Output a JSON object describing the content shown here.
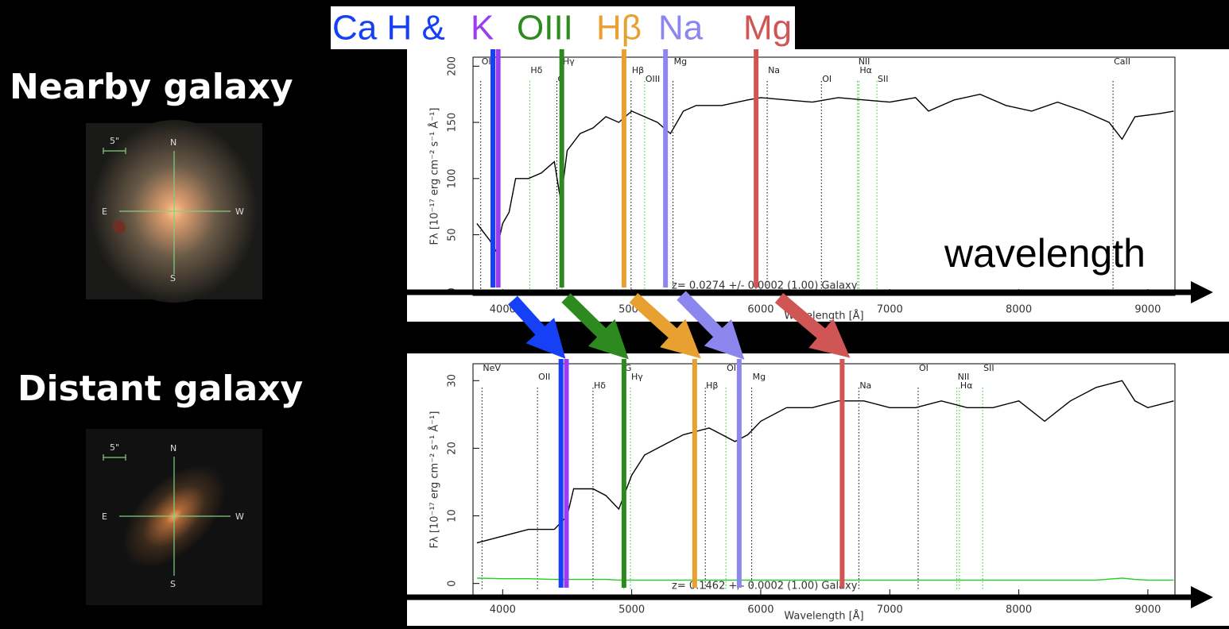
{
  "legend_box": [
    {
      "text": "Ca H &",
      "color": "#1540f5"
    },
    {
      "text": "K",
      "color": "#9b3cf0"
    },
    {
      "text": "OIII",
      "color": "#2d8a1e"
    },
    {
      "text": "Hβ",
      "color": "#e8a030"
    },
    {
      "text": "Na",
      "color": "#8c86ee"
    },
    {
      "text": "Mg",
      "color": "#d05656"
    }
  ],
  "labels": {
    "nearby": "Nearby galaxy",
    "distant": "Distant galaxy",
    "wavelength": "wavelength"
  },
  "thumbnails": [
    {
      "scale": "5\"",
      "north": "N",
      "east": "E",
      "west": "W",
      "south": "S"
    },
    {
      "scale": "5\"",
      "north": "N",
      "east": "E",
      "west": "W",
      "south": "S"
    }
  ],
  "chart_data": [
    {
      "type": "line",
      "x_label": "Wavelength [Å]",
      "y_label": "Fλ [10⁻¹⁷ erg cm⁻² s⁻¹ Å⁻¹]",
      "annotation": "z= 0.0274 +/- 0.0002 (1.00) Galaxy",
      "xlim": [
        3770,
        9210
      ],
      "xticks": [
        4000,
        5000,
        6000,
        7000,
        8000,
        9000
      ],
      "ylim": [
        -4,
        208
      ],
      "yticks": [
        0,
        50,
        100,
        150,
        200
      ],
      "x": [
        3800,
        3900,
        3950,
        4000,
        4050,
        4100,
        4200,
        4300,
        4400,
        4450,
        4500,
        4600,
        4700,
        4800,
        4900,
        5000,
        5100,
        5200,
        5300,
        5350,
        5400,
        5500,
        5700,
        5900,
        6000,
        6200,
        6400,
        6600,
        6800,
        7000,
        7200,
        7300,
        7500,
        7700,
        7900,
        8100,
        8300,
        8500,
        8700,
        8800,
        8900,
        9100,
        9200
      ],
      "series": [
        {
          "color": "#000000",
          "values": [
            60,
            45,
            35,
            60,
            70,
            100,
            100,
            105,
            115,
            80,
            125,
            140,
            145,
            155,
            150,
            160,
            155,
            150,
            140,
            150,
            160,
            165,
            165,
            170,
            172,
            170,
            168,
            172,
            170,
            168,
            172,
            160,
            170,
            175,
            165,
            160,
            168,
            160,
            150,
            135,
            155,
            158,
            160
          ]
        }
      ],
      "feature_lines": [
        {
          "label": "OII",
          "x": 3830,
          "color": "#000000"
        },
        {
          "label": "Hδ",
          "x": 4210,
          "color": "#22cc22"
        },
        {
          "label": "G",
          "x": 4420,
          "color": "#000000"
        },
        {
          "label": "Hγ",
          "x": 4460,
          "color": "#22cc22"
        },
        {
          "label": "Hβ",
          "x": 4995,
          "color": "#000000"
        },
        {
          "label": "OIII",
          "x": 5100,
          "color": "#22cc22"
        },
        {
          "label": "Mg",
          "x": 5320,
          "color": "#000000"
        },
        {
          "label": "Na",
          "x": 6050,
          "color": "#000000"
        },
        {
          "label": "OI",
          "x": 6470,
          "color": "#000000"
        },
        {
          "label": "NII",
          "x": 6750,
          "color": "#22cc22"
        },
        {
          "label": "Hα",
          "x": 6760,
          "color": "#22cc22"
        },
        {
          "label": "SII",
          "x": 6900,
          "color": "#22cc22"
        },
        {
          "label": "CaII",
          "x": 8730,
          "color": "#000000"
        }
      ],
      "highlight_lines": [
        {
          "x": 3924,
          "color": "#1540f5"
        },
        {
          "x": 3965,
          "color": "#9b3cf0"
        },
        {
          "x": 4458,
          "color": "#2d8a1e"
        },
        {
          "x": 4940,
          "color": "#e8a030"
        },
        {
          "x": 5262,
          "color": "#8c86ee"
        },
        {
          "x": 5964,
          "color": "#d05656"
        }
      ]
    },
    {
      "type": "line",
      "x_label": "Wavelength [Å]",
      "y_label": "Fλ [10⁻¹⁷ erg cm⁻² s⁻¹ Å⁻¹]",
      "annotation": "z= 0.1462 +/- 0.0002 (1.00) Galaxy",
      "xlim": [
        3770,
        9210
      ],
      "xticks": [
        4000,
        5000,
        6000,
        7000,
        8000,
        9000
      ],
      "ylim": [
        -1.8,
        32.5
      ],
      "yticks": [
        0,
        10,
        20,
        30
      ],
      "x": [
        3800,
        4000,
        4200,
        4400,
        4500,
        4550,
        4700,
        4800,
        4900,
        5000,
        5100,
        5200,
        5400,
        5600,
        5700,
        5800,
        5900,
        6000,
        6200,
        6400,
        6600,
        6800,
        7000,
        7200,
        7400,
        7600,
        7800,
        8000,
        8200,
        8400,
        8600,
        8800,
        8900,
        9000,
        9200
      ],
      "series": [
        {
          "color": "#000000",
          "values": [
            6,
            7,
            8,
            8,
            10,
            14,
            14,
            13,
            11,
            16,
            19,
            20,
            22,
            23,
            22,
            21,
            22,
            24,
            26,
            26,
            27,
            27,
            26,
            26,
            27,
            26,
            26,
            27,
            24,
            27,
            29,
            30,
            27,
            26,
            27
          ]
        },
        {
          "color": "#22cc22",
          "values": [
            0.8,
            0.7,
            0.7,
            0.6,
            0.6,
            0.6,
            0.6,
            0.6,
            0.5,
            0.5,
            0.5,
            0.5,
            0.5,
            0.5,
            0.5,
            0.5,
            0.5,
            0.5,
            0.5,
            0.5,
            0.5,
            0.5,
            0.5,
            0.5,
            0.5,
            0.5,
            0.5,
            0.5,
            0.5,
            0.5,
            0.5,
            0.8,
            0.6,
            0.5,
            0.5
          ]
        }
      ],
      "feature_lines": [
        {
          "label": "NeV",
          "x": 3840,
          "color": "#000000"
        },
        {
          "label": "OII",
          "x": 4270,
          "color": "#000000"
        },
        {
          "label": "Hδ",
          "x": 4700,
          "color": "#000000"
        },
        {
          "label": "G",
          "x": 4940,
          "color": "#22cc22"
        },
        {
          "label": "Hγ",
          "x": 4990,
          "color": "#22cc22"
        },
        {
          "label": "Hβ",
          "x": 5570,
          "color": "#000000"
        },
        {
          "label": "OIII",
          "x": 5730,
          "color": "#22cc22"
        },
        {
          "label": "Mg",
          "x": 5930,
          "color": "#000000"
        },
        {
          "label": "Na",
          "x": 6760,
          "color": "#000000"
        },
        {
          "label": "OI",
          "x": 7220,
          "color": "#000000"
        },
        {
          "label": "NII",
          "x": 7520,
          "color": "#22cc22"
        },
        {
          "label": "Hα",
          "x": 7540,
          "color": "#22cc22"
        },
        {
          "label": "SII",
          "x": 7720,
          "color": "#22cc22"
        }
      ],
      "highlight_lines": [
        {
          "x": 4452,
          "color": "#1540f5"
        },
        {
          "x": 4494,
          "color": "#9b3cf0"
        },
        {
          "x": 4940,
          "color": "#2d8a1e"
        },
        {
          "x": 5488,
          "color": "#e8a030"
        },
        {
          "x": 5833,
          "color": "#8c86ee"
        },
        {
          "x": 6631,
          "color": "#d05656"
        }
      ]
    }
  ]
}
